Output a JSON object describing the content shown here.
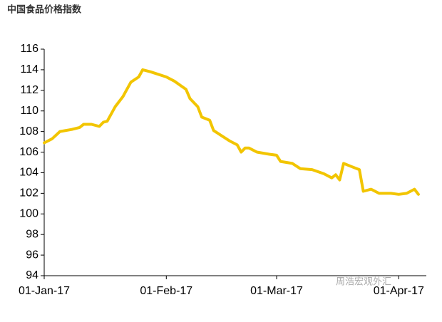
{
  "chart_data": {
    "type": "line",
    "title": "中国食品价格指数",
    "annotation": "周浩宏观外汇",
    "x": [
      "2017-01-01",
      "2017-01-03",
      "2017-01-05",
      "2017-01-08",
      "2017-01-10",
      "2017-01-11",
      "2017-01-13",
      "2017-01-15",
      "2017-01-16",
      "2017-01-17",
      "2017-01-19",
      "2017-01-21",
      "2017-01-22",
      "2017-01-23",
      "2017-01-25",
      "2017-01-26",
      "2017-01-28",
      "2017-02-01",
      "2017-02-03",
      "2017-02-06",
      "2017-02-07",
      "2017-02-09",
      "2017-02-10",
      "2017-02-12",
      "2017-02-13",
      "2017-02-15",
      "2017-02-17",
      "2017-02-19",
      "2017-02-20",
      "2017-02-21",
      "2017-02-22",
      "2017-02-24",
      "2017-02-27",
      "2017-03-01",
      "2017-03-02",
      "2017-03-05",
      "2017-03-07",
      "2017-03-10",
      "2017-03-13",
      "2017-03-15",
      "2017-03-16",
      "2017-03-17",
      "2017-03-18",
      "2017-03-20",
      "2017-03-22",
      "2017-03-23",
      "2017-03-25",
      "2017-03-27",
      "2017-03-30",
      "2017-04-01",
      "2017-04-03",
      "2017-04-05",
      "2017-04-06"
    ],
    "series": [
      {
        "name": "中国食品价格指数",
        "color": "#f2c500",
        "values": [
          106.9,
          107.3,
          108.0,
          108.2,
          108.4,
          108.7,
          108.7,
          108.5,
          108.9,
          109.0,
          110.4,
          111.4,
          112.1,
          112.8,
          113.3,
          114.0,
          113.8,
          113.3,
          112.9,
          112.1,
          111.2,
          110.4,
          109.4,
          109.1,
          108.1,
          107.6,
          107.1,
          106.7,
          106.0,
          106.4,
          106.4,
          106.0,
          105.8,
          105.7,
          105.1,
          104.9,
          104.4,
          104.3,
          103.9,
          103.5,
          103.8,
          103.3,
          104.9,
          104.6,
          104.3,
          102.2,
          102.4,
          102.0,
          102.0,
          101.9,
          102.0,
          102.4,
          101.9
        ]
      }
    ],
    "xlim": [
      "2017-01-01",
      "2017-04-08"
    ],
    "xticks": [
      {
        "value": "2017-01-01",
        "label": "01-Jan-17"
      },
      {
        "value": "2017-02-01",
        "label": "01-Feb-17"
      },
      {
        "value": "2017-03-01",
        "label": "01-Mar-17"
      },
      {
        "value": "2017-04-01",
        "label": "01-Apr-17"
      }
    ],
    "ylim": [
      94,
      116
    ],
    "yticks": [
      94,
      96,
      98,
      100,
      102,
      104,
      106,
      108,
      110,
      112,
      114,
      116
    ]
  }
}
